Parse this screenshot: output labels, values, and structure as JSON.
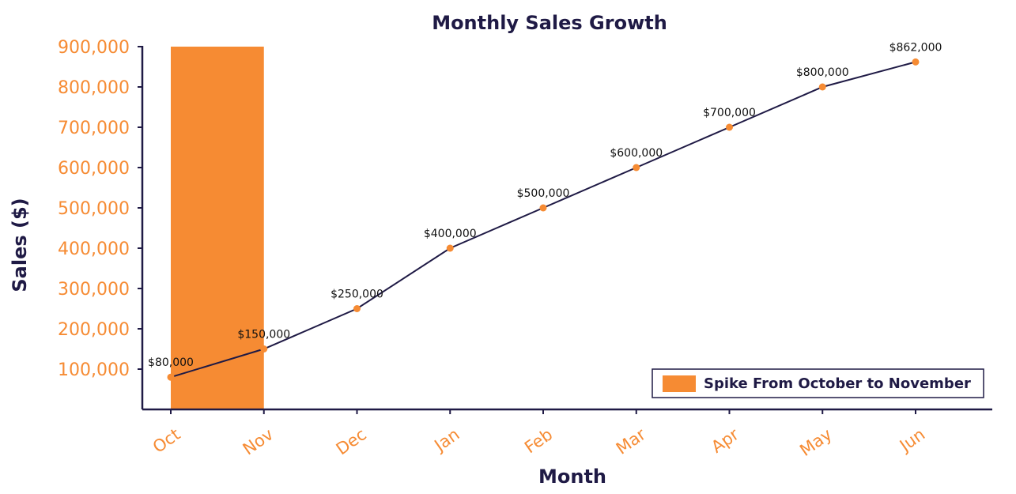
{
  "chart_data": {
    "type": "line",
    "title": "Monthly Sales Growth",
    "x_label": "Month",
    "y_label": "Sales ($)",
    "categories": [
      "Oct",
      "Nov",
      "Dec",
      "Jan",
      "Feb",
      "Mar",
      "Apr",
      "May",
      "Jun"
    ],
    "series": [
      {
        "name": "Sales",
        "color": "#1f1a45",
        "marker_color": "#f68b33",
        "values": [
          80000,
          150000,
          250000,
          400000,
          500000,
          600000,
          700000,
          800000,
          862000
        ],
        "value_labels": [
          "$80,000",
          "$150,000",
          "$250,000",
          "$400,000",
          "$500,000",
          "$600,000",
          "$700,000",
          "$800,000",
          "$862,000"
        ]
      }
    ],
    "highlight": {
      "name": "Spike From October to November",
      "color": "#f68b33",
      "start": "Oct",
      "end": "Nov"
    },
    "ylim": [
      0,
      900000
    ],
    "yticks": [
      {
        "value": 100000,
        "label": "100,000"
      },
      {
        "value": 200000,
        "label": "200,000"
      },
      {
        "value": 300000,
        "label": "300,000"
      },
      {
        "value": 400000,
        "label": "400,000"
      },
      {
        "value": 500000,
        "label": "500,000"
      },
      {
        "value": 600000,
        "label": "600,000"
      },
      {
        "value": 700000,
        "label": "700,000"
      },
      {
        "value": 800000,
        "label": "800,000"
      },
      {
        "value": 900000,
        "label": "900,000"
      }
    ],
    "grid": false,
    "legend": "lower right"
  }
}
